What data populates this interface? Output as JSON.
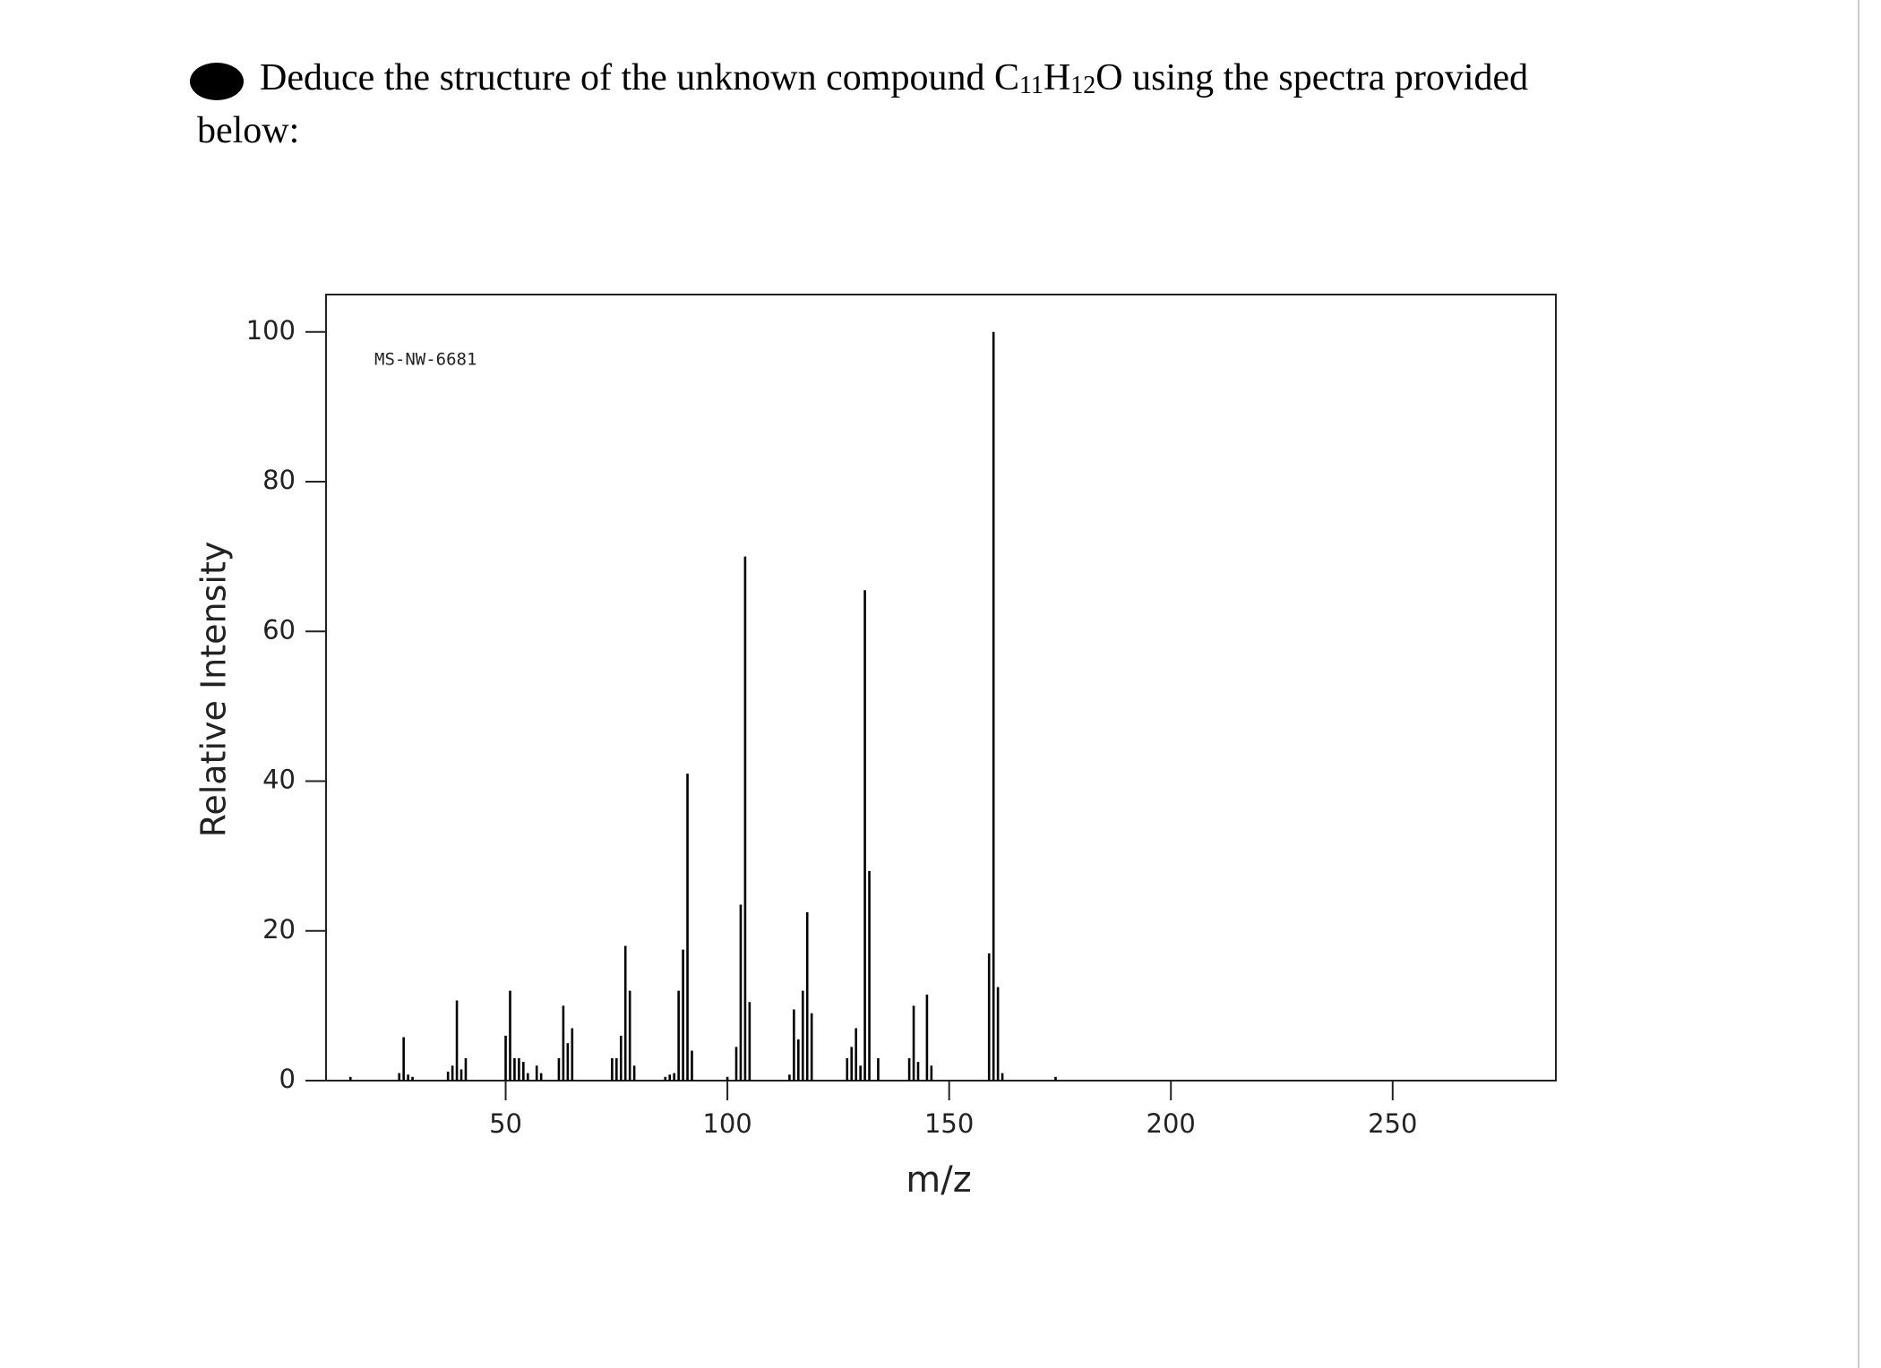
{
  "question": {
    "parts": [
      "Deduce the structure of the unknown compound C",
      "11",
      "H",
      "12",
      "O using the spectra provided below:"
    ]
  },
  "chart_data": {
    "type": "bar",
    "annotation": "MS-NW-6681",
    "xlabel": "m/z",
    "ylabel": "Relative Intensity",
    "x": [
      15,
      26,
      27,
      28,
      29,
      37,
      38,
      39,
      40,
      41,
      50,
      51,
      52,
      53,
      54,
      55,
      57,
      58,
      62,
      63,
      64,
      65,
      74,
      75,
      76,
      77,
      78,
      79,
      86,
      87,
      88,
      89,
      90,
      91,
      92,
      100,
      102,
      103,
      104,
      105,
      114,
      115,
      116,
      117,
      118,
      119,
      127,
      128,
      129,
      130,
      131,
      132,
      134,
      141,
      142,
      143,
      145,
      146,
      159,
      160,
      161,
      162,
      174
    ],
    "values": [
      0.5,
      1,
      5.8,
      0.8,
      0.5,
      1.2,
      2,
      10.7,
      1.5,
      3,
      6,
      12,
      3,
      3,
      2.5,
      1,
      2,
      1,
      3,
      10,
      5,
      7,
      3,
      3,
      6,
      18,
      12,
      2,
      0.5,
      0.8,
      1,
      12,
      17.5,
      41,
      4,
      0.5,
      4.5,
      23.5,
      70,
      10.5,
      0.8,
      9.5,
      5.5,
      12,
      22.5,
      9,
      3,
      4.5,
      7,
      2,
      65.5,
      28,
      3,
      3,
      10,
      2.5,
      11.5,
      2,
      17,
      100,
      12.5,
      1,
      0.5
    ],
    "color": "#000000",
    "xlim": [
      9.5,
      286.8
    ],
    "ylim": [
      0,
      105
    ],
    "xticks": [
      50,
      100,
      150,
      200,
      250
    ],
    "yticks": [
      0,
      20,
      40,
      60,
      80,
      100
    ]
  }
}
